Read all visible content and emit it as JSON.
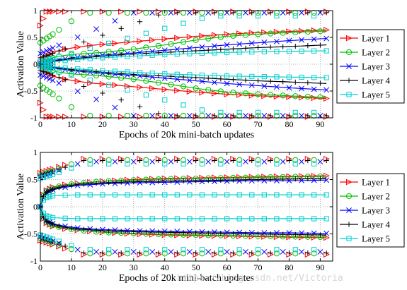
{
  "watermark": "https://blog.csdn.net/Victoria",
  "chart_data": [
    {
      "type": "scatter",
      "xlabel": "Epochs of 20k mini-batch updates",
      "ylabel": "Activation Value",
      "xlim": [
        0,
        94
      ],
      "ylim": [
        -1,
        1
      ],
      "xticks": [
        0,
        10,
        20,
        30,
        40,
        50,
        60,
        70,
        80,
        90
      ],
      "yticks": [
        -1,
        -0.5,
        0,
        0.5,
        1
      ],
      "ytick_labels": [
        "-1",
        "-0.5",
        "0",
        "0.5",
        "1"
      ],
      "grid": true,
      "legend": "right",
      "series": [
        {
          "name": "Layer 1",
          "marker": "triangle-right",
          "color": "#ff0000",
          "mean": [
            [
              0,
              0.02
            ],
            [
              1,
              0.1
            ],
            [
              2,
              0.16
            ],
            [
              4,
              0.22
            ],
            [
              7,
              0.27
            ],
            [
              11,
              0.31
            ],
            [
              16,
              0.35
            ],
            [
              20,
              0.37
            ],
            [
              30,
              0.42
            ],
            [
              40,
              0.47
            ],
            [
              50,
              0.52
            ],
            [
              60,
              0.56
            ],
            [
              70,
              0.59
            ],
            [
              80,
              0.61
            ],
            [
              92,
              0.64
            ]
          ],
          "p98": 0.98,
          "p98_start": 0.72,
          "p98_ramp": 2
        },
        {
          "name": "Layer 2",
          "marker": "circle",
          "color": "#00c000",
          "mean": [
            [
              0,
              0.0
            ],
            [
              2,
              0.08
            ],
            [
              5,
              0.14
            ],
            [
              10,
              0.18
            ],
            [
              20,
              0.22
            ],
            [
              30,
              0.28
            ],
            [
              40,
              0.36
            ],
            [
              50,
              0.45
            ],
            [
              60,
              0.52
            ],
            [
              70,
              0.56
            ],
            [
              80,
              0.59
            ],
            [
              92,
              0.62
            ]
          ],
          "p98": 0.96,
          "p98_start": 0.4,
          "p98_ramp": 14
        },
        {
          "name": "Layer 3",
          "marker": "x",
          "color": "#0000ff",
          "mean": [
            [
              0,
              0.0
            ],
            [
              3,
              0.06
            ],
            [
              10,
              0.12
            ],
            [
              20,
              0.17
            ],
            [
              30,
              0.21
            ],
            [
              40,
              0.26
            ],
            [
              50,
              0.31
            ],
            [
              60,
              0.36
            ],
            [
              70,
              0.4
            ],
            [
              80,
              0.44
            ],
            [
              92,
              0.48
            ]
          ],
          "p98": 0.96,
          "p98_start": 0.2,
          "p98_ramp": 30
        },
        {
          "name": "Layer 4",
          "marker": "plus",
          "color": "#000000",
          "mean": [
            [
              0,
              0.0
            ],
            [
              3,
              0.05
            ],
            [
              10,
              0.1
            ],
            [
              20,
              0.15
            ],
            [
              30,
              0.19
            ],
            [
              40,
              0.22
            ],
            [
              50,
              0.25
            ],
            [
              60,
              0.28
            ],
            [
              70,
              0.31
            ],
            [
              80,
              0.33
            ],
            [
              92,
              0.36
            ]
          ],
          "p98": 0.96,
          "p98_start": 0.12,
          "p98_ramp": 40
        },
        {
          "name": "Layer 5",
          "marker": "square",
          "color": "#00d0d0",
          "mean": [
            [
              0,
              0.0
            ],
            [
              3,
              0.04
            ],
            [
              10,
              0.08
            ],
            [
              20,
              0.12
            ],
            [
              30,
              0.15
            ],
            [
              40,
              0.18
            ],
            [
              50,
              0.2
            ],
            [
              60,
              0.22
            ],
            [
              70,
              0.23
            ],
            [
              80,
              0.24
            ],
            [
              92,
              0.25
            ]
          ],
          "p98": 0.9,
          "p98_start": 0.05,
          "p98_ramp": 55
        }
      ]
    },
    {
      "type": "scatter",
      "xlabel": "Epochs of 20k mini-batch updates",
      "ylabel": "Activation Value",
      "xlim": [
        0,
        94
      ],
      "ylim": [
        -1,
        1
      ],
      "xticks": [
        0,
        10,
        20,
        30,
        40,
        50,
        60,
        70,
        80,
        90
      ],
      "yticks": [
        -1,
        -0.5,
        0,
        0.5,
        1
      ],
      "ytick_labels": [
        "-1",
        "-0.5",
        "0",
        "0.5",
        "1"
      ],
      "grid": true,
      "legend": "right",
      "series": [
        {
          "name": "Layer 1",
          "marker": "triangle-right",
          "color": "#ff0000",
          "mean": [
            [
              0,
              0.0
            ],
            [
              1,
              0.22
            ],
            [
              2,
              0.3
            ],
            [
              4,
              0.36
            ],
            [
              7,
              0.4
            ],
            [
              12,
              0.43
            ],
            [
              20,
              0.47
            ],
            [
              30,
              0.5
            ],
            [
              40,
              0.52
            ],
            [
              50,
              0.53
            ],
            [
              60,
              0.54
            ],
            [
              70,
              0.55
            ],
            [
              80,
              0.56
            ],
            [
              92,
              0.57
            ]
          ],
          "p98": 0.88,
          "p98_start": 0.62,
          "p98_ramp": 14
        },
        {
          "name": "Layer 2",
          "marker": "circle",
          "color": "#00c000",
          "mean": [
            [
              0,
              0.0
            ],
            [
              1,
              0.2
            ],
            [
              2,
              0.28
            ],
            [
              4,
              0.34
            ],
            [
              7,
              0.39
            ],
            [
              12,
              0.43
            ],
            [
              20,
              0.47
            ],
            [
              30,
              0.49
            ],
            [
              40,
              0.51
            ],
            [
              50,
              0.52
            ],
            [
              60,
              0.53
            ],
            [
              70,
              0.54
            ],
            [
              80,
              0.55
            ],
            [
              92,
              0.56
            ]
          ],
          "p98": 0.86,
          "p98_start": 0.58,
          "p98_ramp": 14
        },
        {
          "name": "Layer 3",
          "marker": "x",
          "color": "#0000ff",
          "mean": [
            [
              0,
              0.0
            ],
            [
              1,
              0.18
            ],
            [
              2,
              0.26
            ],
            [
              4,
              0.31
            ],
            [
              7,
              0.35
            ],
            [
              12,
              0.39
            ],
            [
              20,
              0.42
            ],
            [
              30,
              0.44
            ],
            [
              40,
              0.45
            ],
            [
              50,
              0.46
            ],
            [
              60,
              0.47
            ],
            [
              70,
              0.48
            ],
            [
              80,
              0.48
            ],
            [
              92,
              0.49
            ]
          ],
          "p98": 0.83,
          "p98_start": 0.55,
          "p98_ramp": 14
        },
        {
          "name": "Layer 4",
          "marker": "plus",
          "color": "#000000",
          "mean": [
            [
              0,
              0.0
            ],
            [
              1,
              0.19
            ],
            [
              2,
              0.27
            ],
            [
              4,
              0.32
            ],
            [
              7,
              0.37
            ],
            [
              12,
              0.41
            ],
            [
              20,
              0.44
            ],
            [
              30,
              0.46
            ],
            [
              40,
              0.47
            ],
            [
              50,
              0.48
            ],
            [
              60,
              0.49
            ],
            [
              70,
              0.5
            ],
            [
              80,
              0.51
            ],
            [
              92,
              0.52
            ]
          ],
          "p98": 0.85,
          "p98_start": 0.56,
          "p98_ramp": 14
        },
        {
          "name": "Layer 5",
          "marker": "square",
          "color": "#00d0d0",
          "mean": [
            [
              0,
              0.0
            ],
            [
              1,
              0.12
            ],
            [
              2,
              0.17
            ],
            [
              4,
              0.2
            ],
            [
              7,
              0.21
            ],
            [
              12,
              0.22
            ],
            [
              20,
              0.22
            ],
            [
              30,
              0.22
            ],
            [
              40,
              0.22
            ],
            [
              60,
              0.22
            ],
            [
              80,
              0.22
            ],
            [
              92,
              0.22
            ]
          ],
          "p98": 0.79,
          "p98_start": 0.52,
          "p98_ramp": 14
        }
      ]
    }
  ]
}
